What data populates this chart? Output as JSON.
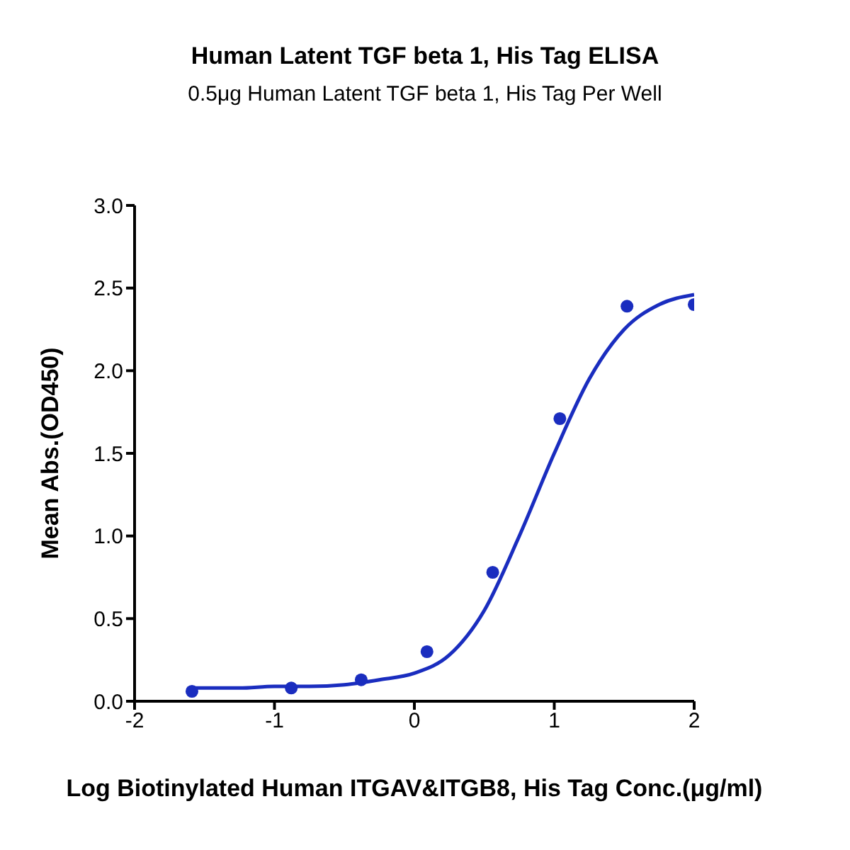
{
  "chart_data": {
    "type": "scatter",
    "title": "Human Latent TGF beta 1, His Tag ELISA",
    "subtitle": "0.5μg Human Latent TGF beta 1, His Tag Per Well",
    "xlabel": "Log Biotinylated Human ITGAV&ITGB8, His Tag Conc.(μg/ml)",
    "ylabel": "Mean Abs.(OD450)",
    "series": [
      {
        "marker": "circle",
        "color": "#1a2dbf",
        "x": [
          -1.59,
          -0.88,
          -0.38,
          0.09,
          0.56,
          1.04,
          1.52,
          2.0
        ],
        "values": [
          0.06,
          0.08,
          0.13,
          0.3,
          0.78,
          1.71,
          2.39,
          2.4
        ]
      },
      {
        "type": "line",
        "marker": "none",
        "color": "#1a2dbf",
        "x": [
          -1.59,
          -1.25,
          -1.0,
          -0.75,
          -0.5,
          -0.25,
          0.0,
          0.25,
          0.5,
          0.75,
          1.0,
          1.25,
          1.5,
          1.75,
          2.0
        ],
        "values": [
          0.08,
          0.08,
          0.09,
          0.09,
          0.1,
          0.13,
          0.17,
          0.28,
          0.55,
          1.0,
          1.5,
          1.95,
          2.25,
          2.4,
          2.46
        ]
      }
    ],
    "xlim": [
      -2,
      2
    ],
    "xticks": [
      -2,
      -1,
      0,
      1,
      2
    ],
    "ylim": [
      0,
      3
    ],
    "yticks": [
      {
        "value": 0,
        "label": "0.0"
      },
      {
        "value": 0.5,
        "label": "0.5"
      },
      {
        "value": 1,
        "label": "1.0"
      },
      {
        "value": 1.5,
        "label": "1.5"
      },
      {
        "value": 2,
        "label": "2.0"
      },
      {
        "value": 2.5,
        "label": "2.5"
      },
      {
        "value": 3,
        "label": "3.0"
      }
    ],
    "grid": false,
    "line_style": "solid"
  }
}
